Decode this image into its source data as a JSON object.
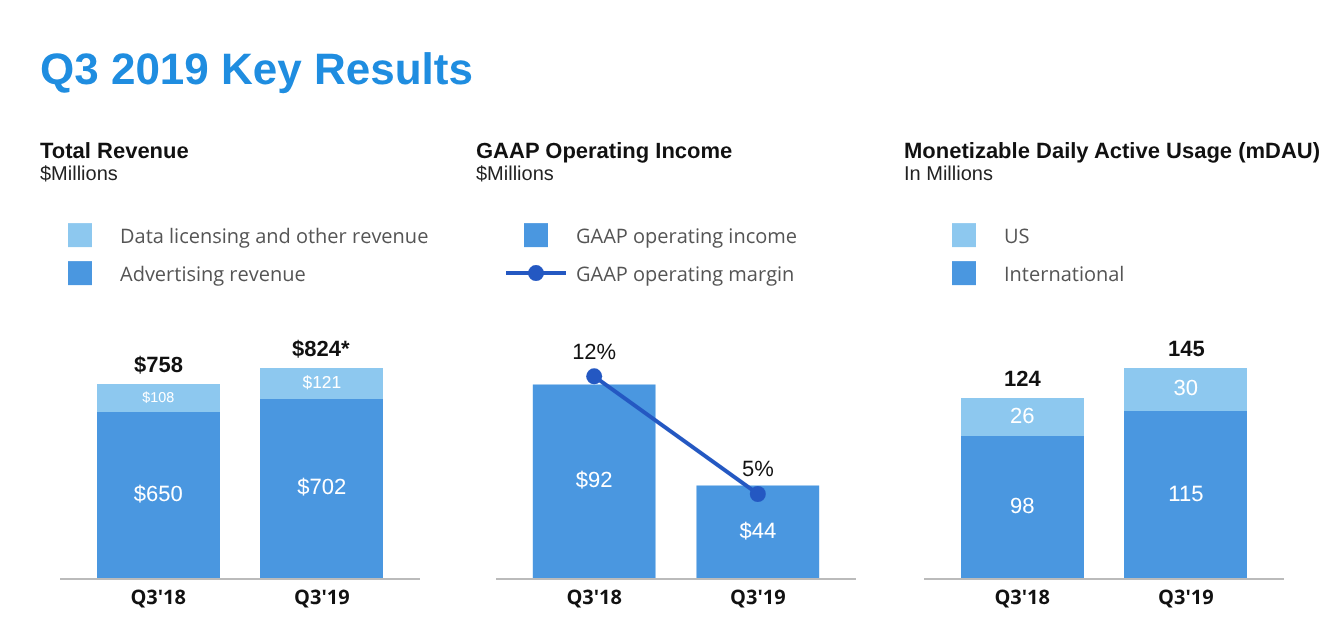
{
  "chart_data": [
    {
      "type": "other",
      "title": "Q3 2019 Key Results"
    },
    {
      "type": "bar",
      "title": "Total Revenue",
      "subtitle": "$Millions",
      "stacked": true,
      "legend": "top left",
      "categories": [
        "Q3'18",
        "Q3'19"
      ],
      "series": [
        {
          "name": "Advertising revenue",
          "color": "#4a97e0",
          "values": [
            650,
            702
          ],
          "value_labels": [
            "$650",
            "$702"
          ]
        },
        {
          "name": "Data licensing and other revenue",
          "color": "#8dc8ef",
          "values": [
            108,
            121
          ],
          "value_labels": [
            "$108",
            "$121"
          ]
        }
      ],
      "totals": [
        "$758",
        "$824*"
      ]
    },
    {
      "type": "bar",
      "title": "GAAP Operating Income",
      "subtitle": "$Millions",
      "legend": "top left",
      "marker": "circle",
      "categories": [
        "Q3'18",
        "Q3'19"
      ],
      "series": [
        {
          "name": "GAAP operating income",
          "color": "#4a97e0",
          "values": [
            92,
            44
          ],
          "value_labels": [
            "$92",
            "$44"
          ]
        },
        {
          "name": "GAAP operating margin",
          "type": "line",
          "axis": "y2",
          "color": "#2458c2",
          "values": [
            12,
            5
          ],
          "value_labels": [
            "12%",
            "5%"
          ]
        }
      ]
    },
    {
      "type": "bar",
      "title": "Monetizable Daily Active Usage (mDAU)",
      "subtitle": "In Millions",
      "stacked": true,
      "legend": "top left",
      "data_labels": true,
      "categories": [
        "Q3'18",
        "Q3'19"
      ],
      "series": [
        {
          "name": "International",
          "color": "#4a97e0",
          "values": [
            98,
            115
          ]
        },
        {
          "name": "US",
          "color": "#8dc8ef",
          "values": [
            26,
            30
          ]
        }
      ],
      "totals": [
        "124",
        "145"
      ]
    }
  ]
}
